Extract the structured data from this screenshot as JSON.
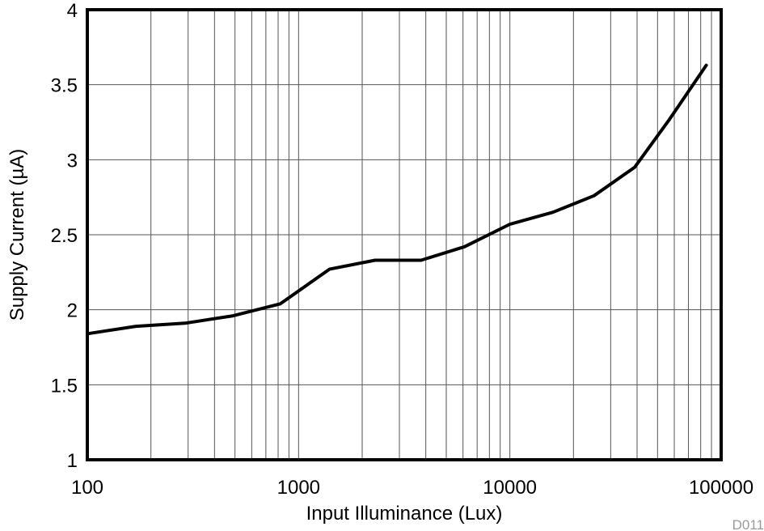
{
  "chart_data": {
    "type": "line",
    "xlabel": "Input Illuminance (Lux)",
    "ylabel": "Supply Current (µA)",
    "x_scale": "log",
    "xlim": [
      100,
      100000
    ],
    "ylim": [
      1,
      4
    ],
    "x_ticks": [
      100,
      1000,
      10000,
      100000
    ],
    "x_tick_labels": [
      "100",
      "1000",
      "10000",
      "100000"
    ],
    "y_ticks": [
      1,
      1.5,
      2,
      2.5,
      3,
      3.5,
      4
    ],
    "y_tick_labels": [
      "1",
      "1.5",
      "2",
      "2.5",
      "3",
      "3.5",
      "4"
    ],
    "grid": true,
    "series": [
      {
        "color": "#000000",
        "x": [
          100,
          170,
          290,
          490,
          820,
          1400,
          2300,
          3800,
          6100,
          10000,
          16000,
          25000,
          39000,
          57000,
          85000
        ],
        "y": [
          1.84,
          1.89,
          1.91,
          1.96,
          2.04,
          2.27,
          2.33,
          2.33,
          2.42,
          2.57,
          2.65,
          2.76,
          2.95,
          3.27,
          3.63
        ]
      }
    ],
    "annotation": "D011"
  }
}
